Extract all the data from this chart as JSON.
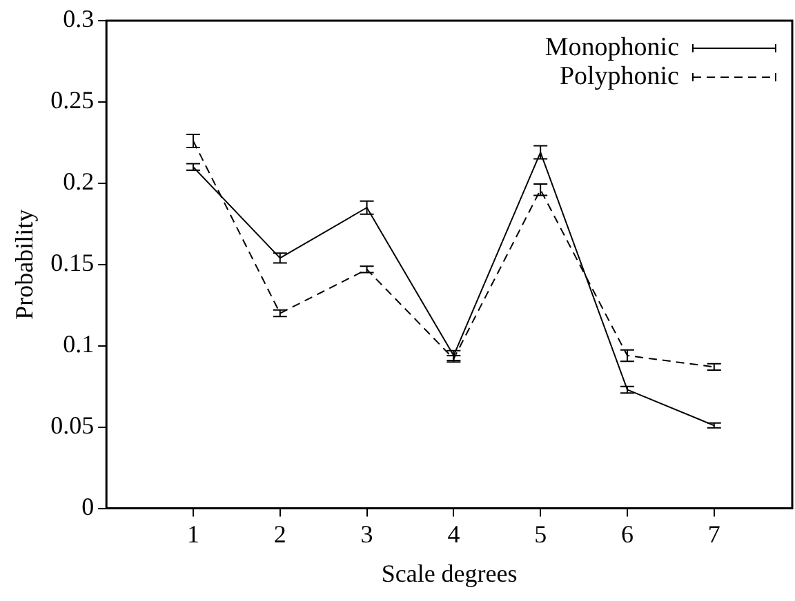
{
  "chart_data": {
    "type": "line",
    "xlabel": "Scale degrees",
    "ylabel": "Probability",
    "x": [
      1,
      2,
      3,
      4,
      5,
      6,
      7
    ],
    "series": [
      {
        "name": "Monophonic",
        "color": "#000000",
        "line_style": "solid",
        "values": [
          0.21,
          0.154,
          0.185,
          0.094,
          0.219,
          0.073,
          0.051
        ],
        "errors": [
          0.002,
          0.003,
          0.004,
          0.003,
          0.004,
          0.002,
          0.0015
        ]
      },
      {
        "name": "Polyphonic",
        "color": "#000000",
        "line_style": "dashed",
        "values": [
          0.226,
          0.12,
          0.147,
          0.092,
          0.196,
          0.094,
          0.087
        ],
        "errors": [
          0.004,
          0.002,
          0.002,
          0.002,
          0.0035,
          0.0035,
          0.002
        ]
      }
    ],
    "xlim": [
      0,
      7.9
    ],
    "xticks": [
      1,
      2,
      3,
      4,
      5,
      6,
      7
    ],
    "ylim": [
      0,
      0.3
    ],
    "yticks": [
      0,
      0.05,
      0.1,
      0.15,
      0.2,
      0.25,
      0.3
    ],
    "grid": false,
    "legend": "top right"
  }
}
